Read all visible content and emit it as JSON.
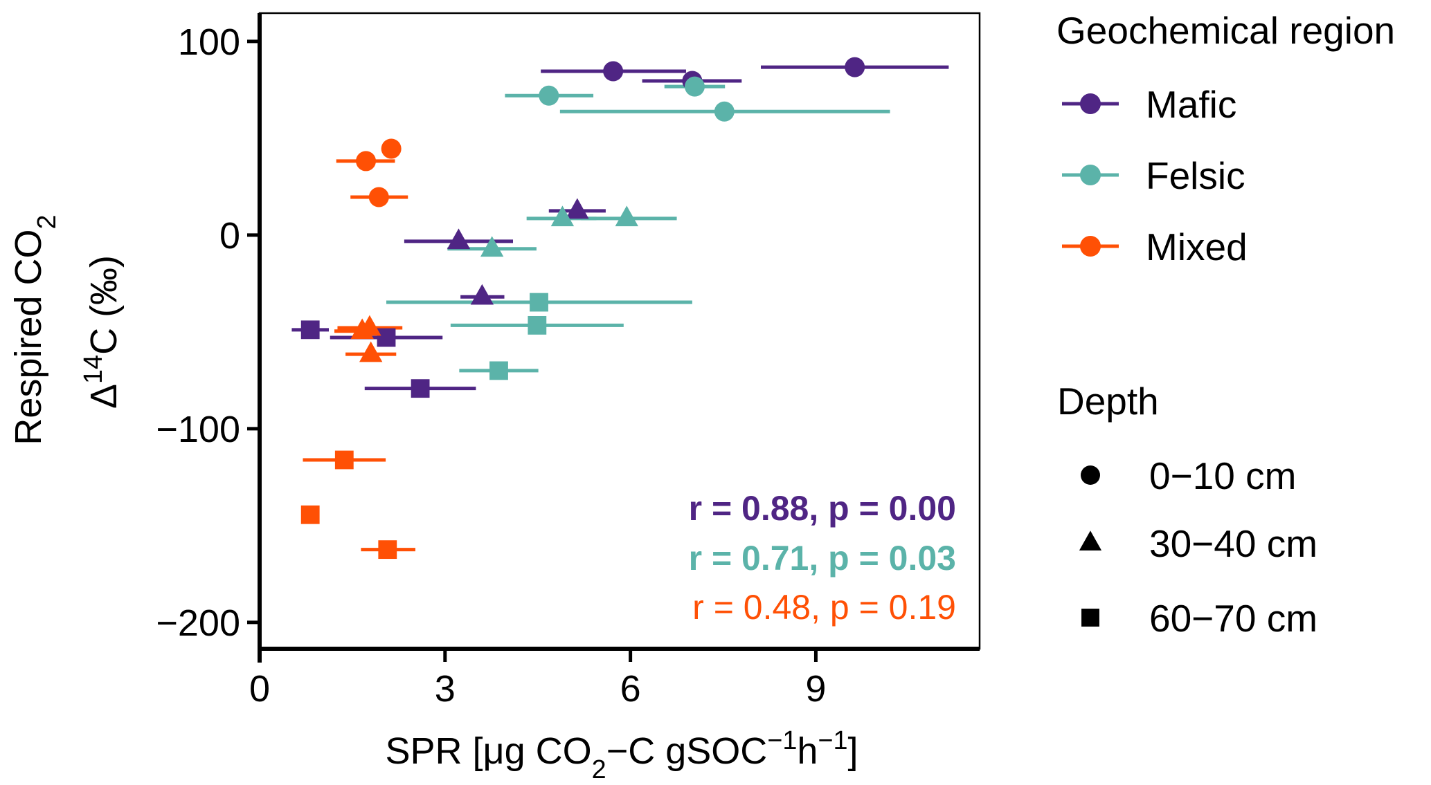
{
  "chart_data": {
    "type": "scatter",
    "title": "",
    "xlabel": {
      "parts": [
        {
          "text": "SPR [μg CO",
          "style": "normal"
        },
        {
          "text": "2",
          "style": "sub"
        },
        {
          "text": "−C gSOC",
          "style": "normal"
        },
        {
          "text": "−1",
          "style": "sup"
        },
        {
          "text": "h",
          "style": "normal"
        },
        {
          "text": "−1",
          "style": "sup"
        },
        {
          "text": "]",
          "style": "normal"
        }
      ]
    },
    "ylabel": {
      "line1": [
        {
          "text": "Respired CO",
          "style": "normal"
        },
        {
          "text": "2",
          "style": "sub"
        }
      ],
      "line2": [
        {
          "text": "Δ",
          "style": "normal"
        },
        {
          "text": "14",
          "style": "sup"
        },
        {
          "text": "C (‰)",
          "style": "normal"
        }
      ]
    },
    "xlim": [
      0,
      11.65
    ],
    "ylim": [
      -213.6,
      114.6
    ],
    "xticks": [
      0,
      3,
      6,
      9
    ],
    "xtick_labels": [
      "0",
      "3",
      "6",
      "9"
    ],
    "yticks": [
      100,
      0,
      -100,
      -200
    ],
    "ytick_labels": [
      "100",
      "0",
      "−100",
      "−200"
    ],
    "grid": false,
    "legend_placement": "right-outside",
    "color_legend": {
      "title": "Geochemical region",
      "entries": [
        {
          "label": "Mafic",
          "color": "#4F2584"
        },
        {
          "label": "Felsic",
          "color": "#5BB3A9"
        },
        {
          "label": "Mixed",
          "color": "#FF5005"
        }
      ]
    },
    "shape_legend": {
      "title": "Depth",
      "entries": [
        {
          "label": "0−10 cm",
          "shape": "circle"
        },
        {
          "label": "30−40 cm",
          "shape": "triangle"
        },
        {
          "label": "60−70 cm",
          "shape": "square"
        }
      ]
    },
    "annotations": [
      {
        "text": "r = 0.88, p = 0.00",
        "color": "#4F2584",
        "bold": true
      },
      {
        "text": "r = 0.71, p = 0.03",
        "color": "#5BB3A9",
        "bold": true
      },
      {
        "text": "r = 0.48, p = 0.19",
        "color": "#FF5005",
        "bold": false
      }
    ],
    "series": [
      {
        "name": "Mafic",
        "color": "#4F2584",
        "points": [
          {
            "depth": "0−10 cm",
            "shape": "circle",
            "x": 5.72,
            "y": 84.6,
            "xerr": [
              4.55,
              6.9
            ]
          },
          {
            "depth": "0−10 cm",
            "shape": "circle",
            "x": 7.0,
            "y": 79.6,
            "xerr": [
              6.19,
              7.8
            ]
          },
          {
            "depth": "0−10 cm",
            "shape": "circle",
            "x": 9.63,
            "y": 86.7,
            "xerr": [
              8.11,
              11.15
            ]
          },
          {
            "depth": "30−40 cm",
            "shape": "triangle",
            "x": 5.14,
            "y": 12.5,
            "xerr": [
              4.68,
              5.6
            ]
          },
          {
            "depth": "30−40 cm",
            "shape": "triangle",
            "x": 3.22,
            "y": -3.2,
            "xerr": [
              2.34,
              4.1
            ]
          },
          {
            "depth": "30−40 cm",
            "shape": "triangle",
            "x": 3.6,
            "y": -31.9,
            "xerr": [
              3.25,
              3.96
            ]
          },
          {
            "depth": "60−70 cm",
            "shape": "square",
            "x": 0.82,
            "y": -48.9,
            "xerr": [
              0.52,
              1.12
            ]
          },
          {
            "depth": "60−70 cm",
            "shape": "square",
            "x": 2.05,
            "y": -52.9,
            "xerr": [
              1.14,
              2.96
            ]
          },
          {
            "depth": "60−70 cm",
            "shape": "square",
            "x": 2.6,
            "y": -79.2,
            "xerr": [
              1.7,
              3.5
            ]
          }
        ]
      },
      {
        "name": "Felsic",
        "color": "#5BB3A9",
        "points": [
          {
            "depth": "0−10 cm",
            "shape": "circle",
            "x": 4.68,
            "y": 72.0,
            "xerr": [
              3.97,
              5.4
            ]
          },
          {
            "depth": "0−10 cm",
            "shape": "circle",
            "x": 7.04,
            "y": 76.7,
            "xerr": [
              6.55,
              7.53
            ]
          },
          {
            "depth": "0−10 cm",
            "shape": "circle",
            "x": 7.52,
            "y": 63.8,
            "xerr": [
              4.86,
              10.2
            ]
          },
          {
            "depth": "30−40 cm",
            "shape": "triangle",
            "x": 4.9,
            "y": 8.6,
            "xerr": [
              4.32,
              5.45
            ]
          },
          {
            "depth": "30−40 cm",
            "shape": "triangle",
            "x": 5.94,
            "y": 8.6,
            "xerr": [
              5.2,
              6.75
            ]
          },
          {
            "depth": "30−40 cm",
            "shape": "triangle",
            "x": 3.76,
            "y": -7.1,
            "xerr": [
              3.04,
              4.48
            ]
          },
          {
            "depth": "60−70 cm",
            "shape": "square",
            "x": 4.52,
            "y": -34.7,
            "xerr": [
              2.05,
              7.0
            ]
          },
          {
            "depth": "60−70 cm",
            "shape": "square",
            "x": 4.49,
            "y": -46.6,
            "xerr": [
              3.09,
              5.89
            ]
          },
          {
            "depth": "60−70 cm",
            "shape": "square",
            "x": 3.87,
            "y": -70.0,
            "xerr": [
              3.23,
              4.51
            ]
          }
        ]
      },
      {
        "name": "Mixed",
        "color": "#FF5005",
        "points": [
          {
            "depth": "0−10 cm",
            "shape": "circle",
            "x": 2.13,
            "y": 44.6,
            "xerr": null
          },
          {
            "depth": "0−10 cm",
            "shape": "circle",
            "x": 1.72,
            "y": 38.2,
            "xerr": [
              1.24,
              2.19
            ]
          },
          {
            "depth": "0−10 cm",
            "shape": "circle",
            "x": 1.93,
            "y": 19.6,
            "xerr": [
              1.47,
              2.4
            ]
          },
          {
            "depth": "30−40 cm",
            "shape": "triangle",
            "x": 1.66,
            "y": -49.6,
            "xerr": [
              1.21,
              2.1
            ]
          },
          {
            "depth": "30−40 cm",
            "shape": "triangle",
            "x": 1.78,
            "y": -47.9,
            "xerr": [
              1.26,
              2.31
            ]
          },
          {
            "depth": "30−40 cm",
            "shape": "triangle",
            "x": 1.8,
            "y": -61.5,
            "xerr": [
              1.39,
              2.21
            ]
          },
          {
            "depth": "60−70 cm",
            "shape": "square",
            "x": 1.37,
            "y": -116.1,
            "xerr": [
              0.7,
              2.04
            ]
          },
          {
            "depth": "60−70 cm",
            "shape": "square",
            "x": 0.82,
            "y": -144.4,
            "xerr": null
          },
          {
            "depth": "60−70 cm",
            "shape": "square",
            "x": 2.07,
            "y": -162.4,
            "xerr": [
              1.64,
              2.52
            ]
          }
        ]
      }
    ]
  }
}
